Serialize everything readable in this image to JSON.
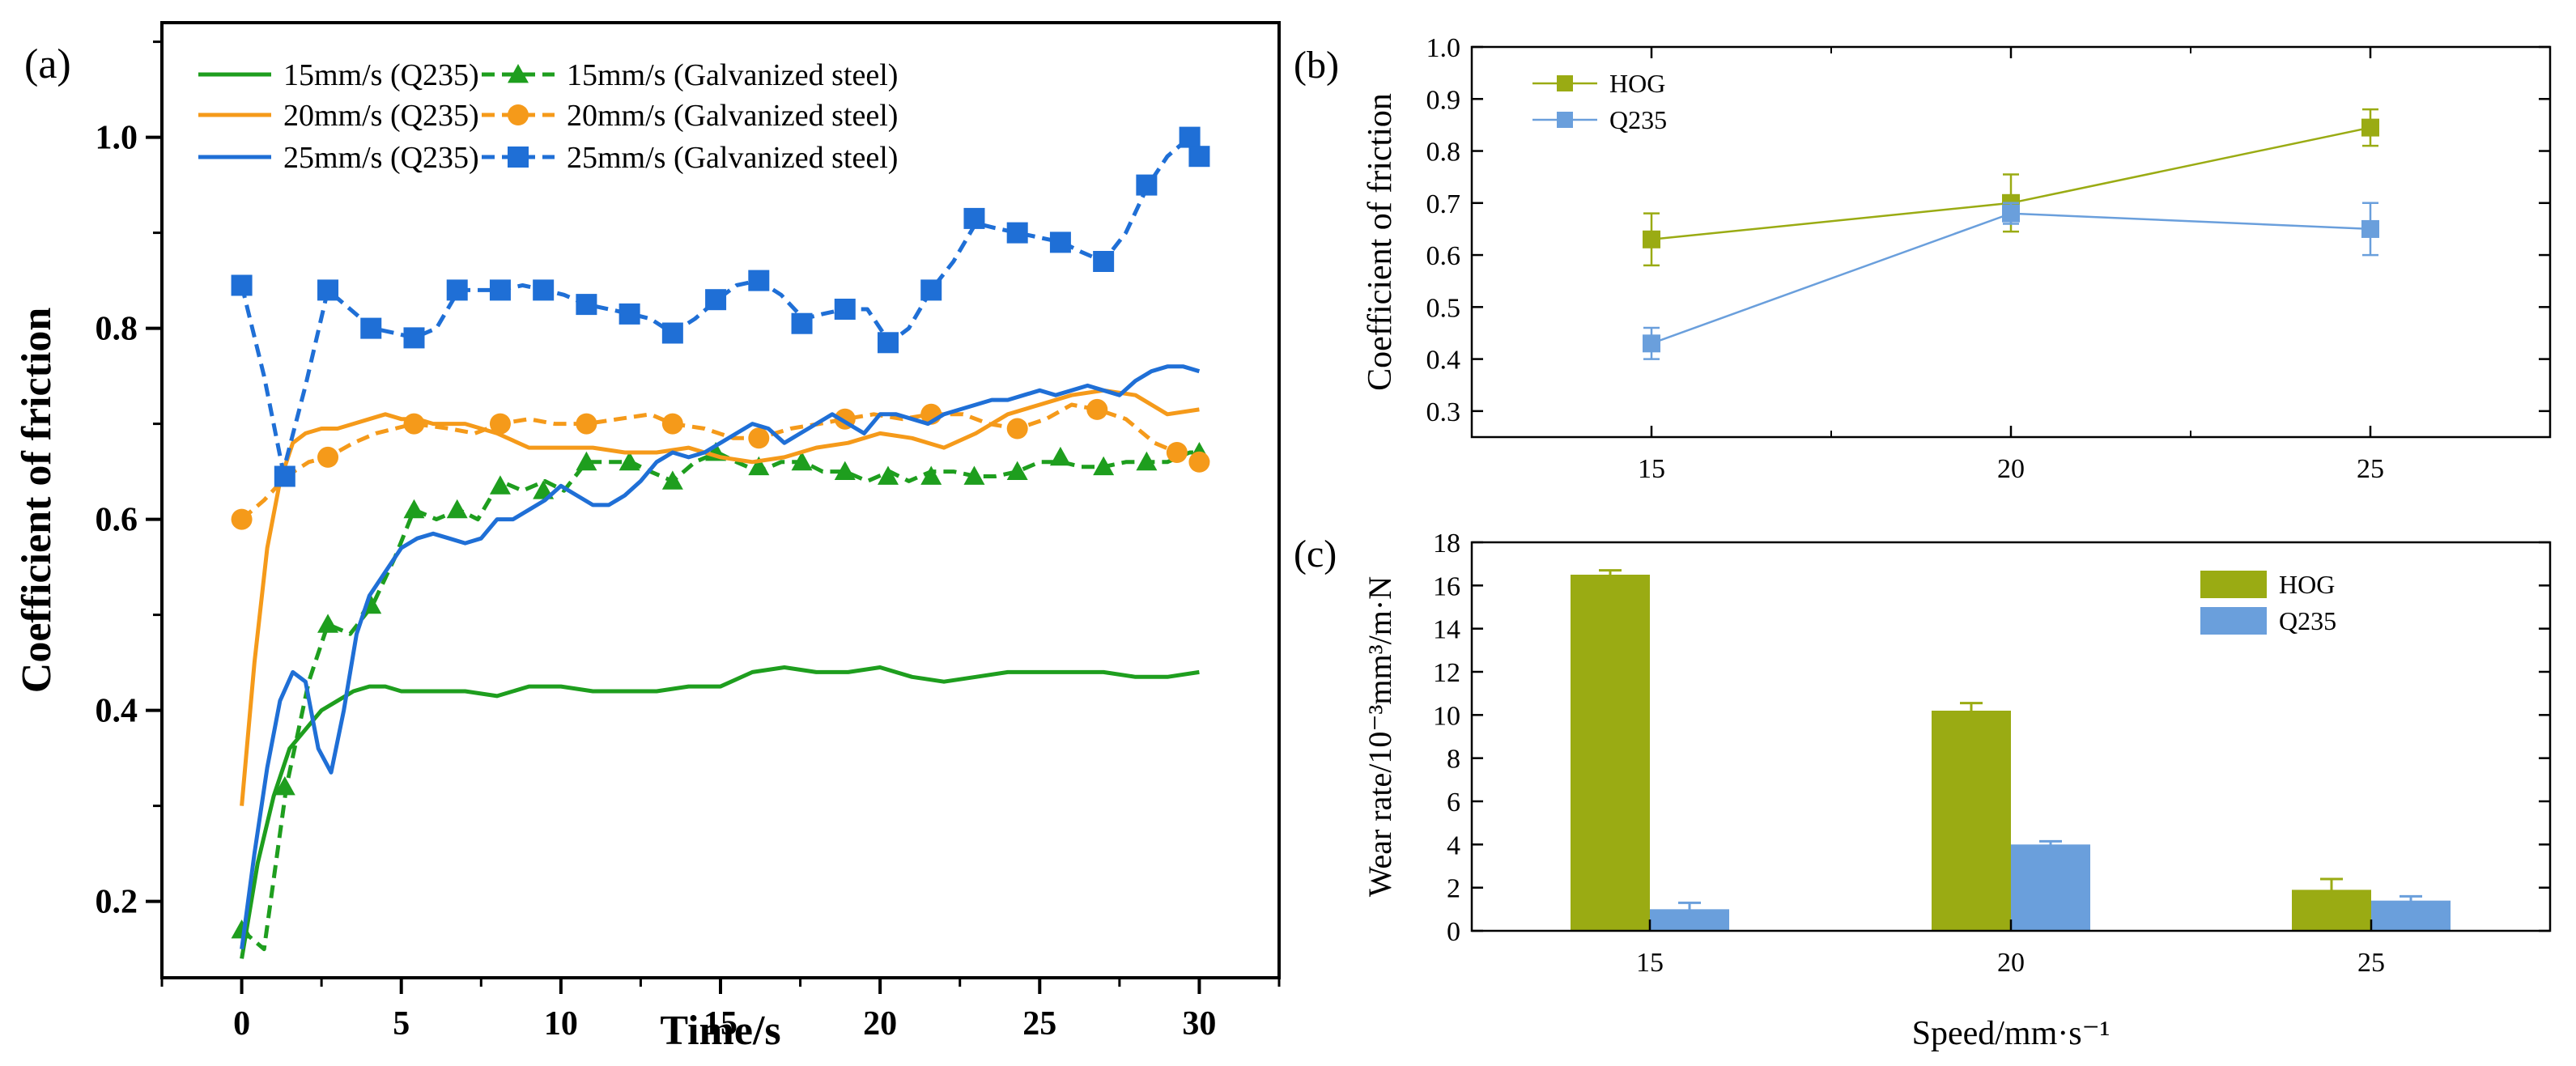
{
  "panels": {
    "a": {
      "label": "(a)"
    },
    "b": {
      "label": "(b)"
    },
    "c": {
      "label": "(c)"
    }
  },
  "chart_data": [
    {
      "id": "a",
      "type": "line",
      "xlabel": "Time/s",
      "ylabel": "Coefficient of friction",
      "xlim": [
        -2.5,
        32.5
      ],
      "ylim": [
        0.12,
        1.12
      ],
      "xticks": [
        0,
        5,
        10,
        15,
        20,
        25,
        30
      ],
      "yticks": [
        0.2,
        0.4,
        0.6,
        0.8,
        1.0
      ],
      "ytick_labels": [
        "0.2",
        "0.4",
        "0.6",
        "0.8",
        "1.0"
      ],
      "legend_position": "top",
      "series": [
        {
          "name": "15mm/s (Q235)",
          "color": "#1e9e1e",
          "style": "solid",
          "marker": "none",
          "x": [
            0,
            0.5,
            1,
            1.5,
            2,
            2.5,
            3,
            3.5,
            4,
            4.5,
            5,
            6,
            7,
            8,
            9,
            10,
            11,
            12,
            13,
            14,
            15,
            16,
            17,
            18,
            19,
            20,
            21,
            22,
            23,
            24,
            25,
            26,
            27,
            28,
            29,
            30
          ],
          "y": [
            0.14,
            0.24,
            0.31,
            0.36,
            0.38,
            0.4,
            0.41,
            0.42,
            0.425,
            0.425,
            0.42,
            0.42,
            0.42,
            0.415,
            0.425,
            0.425,
            0.42,
            0.42,
            0.42,
            0.425,
            0.425,
            0.44,
            0.445,
            0.44,
            0.44,
            0.445,
            0.435,
            0.43,
            0.435,
            0.44,
            0.44,
            0.44,
            0.44,
            0.435,
            0.435,
            0.44
          ]
        },
        {
          "name": "15mm/s (Galvanized steel)",
          "color": "#1e9e1e",
          "style": "dashed",
          "marker": "triangle",
          "x": [
            0,
            0.7,
            1.4,
            2.1,
            2.7,
            3.4,
            4.1,
            4.8,
            5.4,
            6.1,
            6.8,
            7.4,
            8.1,
            8.8,
            9.5,
            10.1,
            10.8,
            11.5,
            12.2,
            12.8,
            13.5,
            14.2,
            14.9,
            15.5,
            16.2,
            16.9,
            17.6,
            18.2,
            18.9,
            19.6,
            20.3,
            20.9,
            21.6,
            22.3,
            23.0,
            23.6,
            24.3,
            25.0,
            25.7,
            26.3,
            27.0,
            27.7,
            28.4,
            29.0,
            29.7,
            30.0
          ],
          "y": [
            0.17,
            0.15,
            0.32,
            0.43,
            0.49,
            0.48,
            0.51,
            0.56,
            0.61,
            0.6,
            0.61,
            0.6,
            0.64,
            0.63,
            0.64,
            0.63,
            0.66,
            0.66,
            0.66,
            0.65,
            0.64,
            0.66,
            0.67,
            0.66,
            0.65,
            0.66,
            0.66,
            0.65,
            0.65,
            0.64,
            0.65,
            0.64,
            0.65,
            0.65,
            0.645,
            0.645,
            0.65,
            0.66,
            0.66,
            0.655,
            0.655,
            0.66,
            0.66,
            0.66,
            0.67,
            0.67
          ],
          "marker_x": [
            0,
            1.35,
            2.7,
            4.05,
            5.4,
            6.75,
            8.1,
            9.45,
            10.8,
            12.15,
            13.5,
            14.85,
            16.2,
            17.55,
            18.9,
            20.25,
            21.6,
            22.95,
            24.3,
            25.65,
            27.0,
            28.35,
            30.0
          ],
          "marker_y": [
            0.17,
            0.32,
            0.49,
            0.51,
            0.61,
            0.61,
            0.635,
            0.63,
            0.66,
            0.66,
            0.64,
            0.67,
            0.655,
            0.66,
            0.65,
            0.645,
            0.645,
            0.645,
            0.65,
            0.665,
            0.655,
            0.66,
            0.67
          ]
        },
        {
          "name": "20mm/s (Q235)",
          "color": "#f59a1a",
          "style": "solid",
          "marker": "none",
          "x": [
            0,
            0.4,
            0.8,
            1.2,
            1.6,
            2,
            2.5,
            3,
            3.5,
            4,
            4.5,
            5,
            5.5,
            6,
            7,
            8,
            9,
            10,
            11,
            12,
            13,
            14,
            15,
            16,
            17,
            18,
            19,
            20,
            21,
            22,
            23,
            24,
            25,
            26,
            27,
            28,
            29,
            30
          ],
          "y": [
            0.3,
            0.45,
            0.57,
            0.64,
            0.68,
            0.69,
            0.695,
            0.695,
            0.7,
            0.705,
            0.71,
            0.705,
            0.705,
            0.7,
            0.7,
            0.69,
            0.675,
            0.675,
            0.675,
            0.67,
            0.67,
            0.675,
            0.665,
            0.66,
            0.665,
            0.675,
            0.68,
            0.69,
            0.685,
            0.675,
            0.69,
            0.71,
            0.72,
            0.73,
            0.735,
            0.73,
            0.71,
            0.715
          ]
        },
        {
          "name": "20mm/s (Galvanized steel)",
          "color": "#f59a1a",
          "style": "dashed",
          "marker": "circle",
          "x": [
            0,
            0.7,
            1.4,
            2.1,
            2.7,
            3.5,
            4.2,
            5.4,
            6.5,
            7.3,
            8.1,
            9.0,
            9.8,
            10.8,
            11.8,
            12.8,
            13.5,
            14.5,
            15.4,
            16.2,
            17.2,
            18.1,
            18.9,
            19.8,
            20.7,
            21.6,
            22.6,
            23.4,
            24.3,
            25.2,
            26.0,
            26.8,
            27.7,
            28.6,
            29.3,
            30.0
          ],
          "y": [
            0.6,
            0.62,
            0.645,
            0.66,
            0.665,
            0.68,
            0.69,
            0.7,
            0.695,
            0.69,
            0.7,
            0.705,
            0.7,
            0.7,
            0.705,
            0.71,
            0.7,
            0.695,
            0.685,
            0.685,
            0.695,
            0.7,
            0.705,
            0.71,
            0.705,
            0.71,
            0.71,
            0.7,
            0.695,
            0.705,
            0.72,
            0.715,
            0.705,
            0.68,
            0.67,
            0.66
          ],
          "marker_x": [
            0,
            2.7,
            5.4,
            8.1,
            10.8,
            13.5,
            16.2,
            18.9,
            21.6,
            24.3,
            26.8,
            29.3,
            30.0
          ],
          "marker_y": [
            0.6,
            0.665,
            0.7,
            0.7,
            0.7,
            0.7,
            0.685,
            0.705,
            0.71,
            0.695,
            0.715,
            0.67,
            0.66
          ]
        },
        {
          "name": "25mm/s (Q235)",
          "color": "#1f6fd6",
          "style": "solid",
          "marker": "none",
          "x": [
            0,
            0.4,
            0.8,
            1.2,
            1.6,
            2,
            2.4,
            2.8,
            3.2,
            3.6,
            4,
            4.5,
            5,
            5.5,
            6,
            6.5,
            7,
            7.5,
            8,
            8.5,
            9,
            9.5,
            10,
            10.5,
            11,
            11.5,
            12,
            12.5,
            13,
            13.5,
            14,
            14.5,
            15,
            15.5,
            16,
            16.5,
            17,
            17.5,
            18,
            18.5,
            19,
            19.5,
            20,
            20.5,
            21,
            21.5,
            22,
            22.5,
            23,
            23.5,
            24,
            24.5,
            25,
            25.5,
            26,
            26.5,
            27,
            27.5,
            28,
            28.5,
            29,
            29.5,
            30
          ],
          "y": [
            0.15,
            0.25,
            0.34,
            0.41,
            0.44,
            0.43,
            0.36,
            0.335,
            0.4,
            0.48,
            0.52,
            0.545,
            0.57,
            0.58,
            0.585,
            0.58,
            0.575,
            0.58,
            0.6,
            0.6,
            0.61,
            0.62,
            0.635,
            0.625,
            0.615,
            0.615,
            0.625,
            0.64,
            0.66,
            0.67,
            0.665,
            0.67,
            0.68,
            0.69,
            0.7,
            0.695,
            0.68,
            0.69,
            0.7,
            0.71,
            0.7,
            0.69,
            0.71,
            0.71,
            0.705,
            0.7,
            0.71,
            0.715,
            0.72,
            0.725,
            0.725,
            0.73,
            0.735,
            0.73,
            0.735,
            0.74,
            0.735,
            0.73,
            0.745,
            0.755,
            0.76,
            0.76,
            0.755
          ]
        },
        {
          "name": "25mm/s (Galvanized steel)",
          "color": "#1f6fd6",
          "style": "dashed",
          "marker": "square",
          "x": [
            0,
            0.7,
            1.3,
            2.0,
            2.7,
            3.4,
            4.1,
            4.8,
            5.4,
            6.1,
            6.8,
            7.4,
            8.1,
            8.8,
            9.5,
            10.1,
            10.8,
            11.5,
            12.2,
            12.8,
            13.5,
            14.2,
            14.9,
            15.5,
            16.2,
            16.9,
            17.6,
            18.2,
            18.9,
            19.6,
            20.3,
            20.9,
            21.6,
            22.3,
            23.0,
            23.6,
            24.3,
            25.0,
            25.7,
            26.3,
            27.0,
            27.7,
            28.4,
            29.0,
            29.7,
            30.0
          ],
          "y": [
            0.845,
            0.75,
            0.65,
            0.74,
            0.84,
            0.82,
            0.8,
            0.795,
            0.79,
            0.8,
            0.84,
            0.84,
            0.84,
            0.845,
            0.84,
            0.835,
            0.825,
            0.82,
            0.815,
            0.81,
            0.795,
            0.81,
            0.83,
            0.845,
            0.85,
            0.835,
            0.81,
            0.815,
            0.82,
            0.82,
            0.785,
            0.8,
            0.84,
            0.87,
            0.91,
            0.905,
            0.9,
            0.895,
            0.89,
            0.88,
            0.87,
            0.9,
            0.95,
            0.98,
            1.0,
            0.98
          ],
          "marker_x": [
            0,
            1.35,
            2.7,
            4.05,
            5.4,
            6.75,
            8.1,
            9.45,
            10.8,
            12.15,
            13.5,
            14.85,
            16.2,
            17.55,
            18.9,
            20.25,
            21.6,
            22.95,
            24.3,
            25.65,
            27.0,
            28.35,
            29.7,
            30.0
          ],
          "marker_y": [
            0.845,
            0.645,
            0.84,
            0.8,
            0.79,
            0.84,
            0.84,
            0.84,
            0.825,
            0.815,
            0.795,
            0.83,
            0.85,
            0.805,
            0.82,
            0.785,
            0.84,
            0.915,
            0.9,
            0.89,
            0.87,
            0.95,
            1.0,
            0.98
          ]
        }
      ]
    },
    {
      "id": "b",
      "type": "line",
      "xlabel": "",
      "ylabel": "Coefficient of friction",
      "categories": [
        "15",
        "20",
        "25"
      ],
      "xlim": [
        12.5,
        27.5
      ],
      "ylim": [
        0.25,
        1.0
      ],
      "yticks": [
        0.3,
        0.4,
        0.5,
        0.6,
        0.7,
        0.8,
        0.9,
        1.0
      ],
      "ytick_labels": [
        "0.3",
        "0.4",
        "0.5",
        "0.6",
        "0.7",
        "0.8",
        "0.9",
        "1.0"
      ],
      "legend_position": "top-left",
      "series": [
        {
          "name": "HOG",
          "color": "#9aab13",
          "marker": "square",
          "x": [
            15,
            20,
            25
          ],
          "y": [
            0.63,
            0.7,
            0.845
          ],
          "err": [
            0.05,
            0.055,
            0.035
          ]
        },
        {
          "name": "Q235",
          "color": "#6a9fdc",
          "marker": "square",
          "x": [
            15,
            20,
            25
          ],
          "y": [
            0.43,
            0.68,
            0.65
          ],
          "err": [
            0.03,
            0.02,
            0.05
          ]
        }
      ]
    },
    {
      "id": "c",
      "type": "bar",
      "xlabel": "Speed/mm·s⁻¹",
      "ylabel": "Wear rate/10⁻³mm³/m·N",
      "categories": [
        "15",
        "20",
        "25"
      ],
      "ylim": [
        0,
        18
      ],
      "yticks": [
        0,
        2,
        4,
        6,
        8,
        10,
        12,
        14,
        16,
        18
      ],
      "legend_position": "top-right",
      "series": [
        {
          "name": "HOG",
          "color": "#9aab13",
          "values": [
            16.5,
            10.2,
            1.9
          ],
          "err": [
            0.2,
            0.35,
            0.5
          ]
        },
        {
          "name": "Q235",
          "color": "#6a9fdc",
          "values": [
            1.0,
            4.0,
            1.4
          ],
          "err": [
            0.3,
            0.15,
            0.2
          ]
        }
      ]
    }
  ]
}
